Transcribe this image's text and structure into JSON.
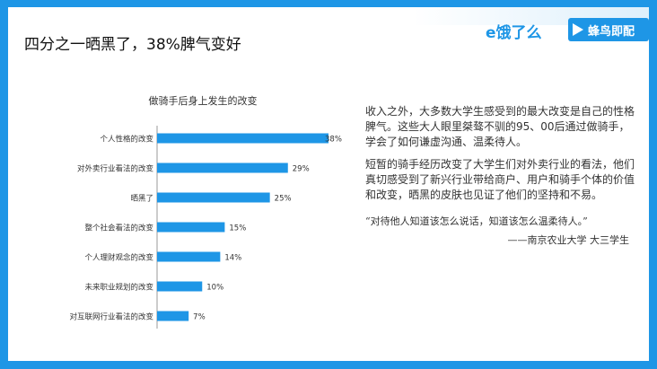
{
  "title": "四分之一晒黑了，38%脾气变好",
  "logos": {
    "eleme": "e饿了么",
    "fengniao": "蜂鸟即配"
  },
  "colors": {
    "accent": "#1e96e6",
    "bar": "#1e96e6"
  },
  "text": {
    "para1": "收入之外，大多数大学生感受到的最大改变是自己的性格脾气。这些大人眼里桀骜不驯的95、00后通过做骑手，学会了如何谦虚沟通、温柔待人。",
    "para2": "短暂的骑手经历改变了大学生们对外卖行业的看法，他们真切感受到了新兴行业带给商户、用户和骑手个体的价值和改变，晒黑的皮肤也见证了他们的坚持和不易。",
    "quote": "“对待他人知道该怎么说话，知道该怎么温柔待人。”",
    "quote_source": "——南京农业大学 大三学生"
  },
  "chart_data": {
    "type": "bar",
    "orientation": "horizontal",
    "title": "做骑手后身上发生的改变",
    "categories": [
      "个人性格的改变",
      "对外卖行业看法的改变",
      "晒黑了",
      "整个社会看法的改变",
      "个人理财观念的改变",
      "未来职业规划的改变",
      "对互联网行业看法的改变"
    ],
    "values": [
      38,
      29,
      25,
      15,
      14,
      10,
      7
    ],
    "value_labels": [
      "38%",
      "29%",
      "25%",
      "15%",
      "14%",
      "10%",
      "7%"
    ],
    "unit": "%",
    "xlim": [
      0,
      38
    ],
    "grid": false,
    "legend": "none"
  }
}
